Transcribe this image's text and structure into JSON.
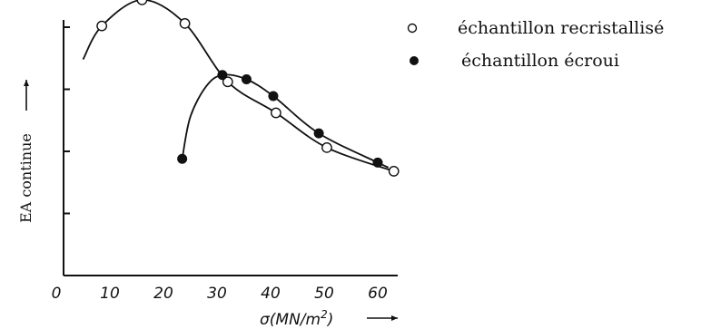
{
  "chart_data": {
    "type": "line",
    "xlabel": "σ(MN/m²)",
    "ylabel": "EA continue",
    "xlim": [
      0,
      65
    ],
    "ylim": [
      0,
      5
    ],
    "x_ticks": [
      "0",
      "10",
      "20",
      "30",
      "40",
      "50",
      "60"
    ],
    "legend_position": "top-right",
    "series": [
      {
        "name": "échantillon recristallisé",
        "marker": "open-circle",
        "points": [
          {
            "x": 8.5,
            "y": 4.02
          },
          {
            "x": 16.0,
            "y": 4.44
          },
          {
            "x": 24.0,
            "y": 4.06
          },
          {
            "x": 32.0,
            "y": 3.12
          },
          {
            "x": 41.0,
            "y": 2.62
          },
          {
            "x": 50.5,
            "y": 2.06
          },
          {
            "x": 63.0,
            "y": 1.68
          }
        ],
        "curve": [
          {
            "x": 5.0,
            "y": 3.48
          },
          {
            "x": 8.5,
            "y": 4.02
          },
          {
            "x": 16.0,
            "y": 4.44
          },
          {
            "x": 24.0,
            "y": 4.06
          },
          {
            "x": 32.0,
            "y": 3.12
          },
          {
            "x": 41.0,
            "y": 2.62
          },
          {
            "x": 50.5,
            "y": 2.06
          },
          {
            "x": 63.0,
            "y": 1.68
          }
        ]
      },
      {
        "name": "échantillon écroui",
        "marker": "filled-circle",
        "points": [
          {
            "x": 23.5,
            "y": 1.88
          },
          {
            "x": 31.0,
            "y": 3.23
          },
          {
            "x": 35.5,
            "y": 3.16
          },
          {
            "x": 40.5,
            "y": 2.89
          },
          {
            "x": 49.0,
            "y": 2.29
          },
          {
            "x": 60.0,
            "y": 1.82
          }
        ],
        "curve": [
          {
            "x": 23.5,
            "y": 1.88
          },
          {
            "x": 25.0,
            "y": 2.55
          },
          {
            "x": 28.0,
            "y": 3.05
          },
          {
            "x": 31.0,
            "y": 3.23
          },
          {
            "x": 35.5,
            "y": 3.16
          },
          {
            "x": 40.5,
            "y": 2.89
          },
          {
            "x": 49.0,
            "y": 2.29
          },
          {
            "x": 60.0,
            "y": 1.82
          },
          {
            "x": 62.0,
            "y": 1.74
          }
        ]
      }
    ],
    "colors": {
      "line": "#111111",
      "background": "#ffffff"
    }
  }
}
